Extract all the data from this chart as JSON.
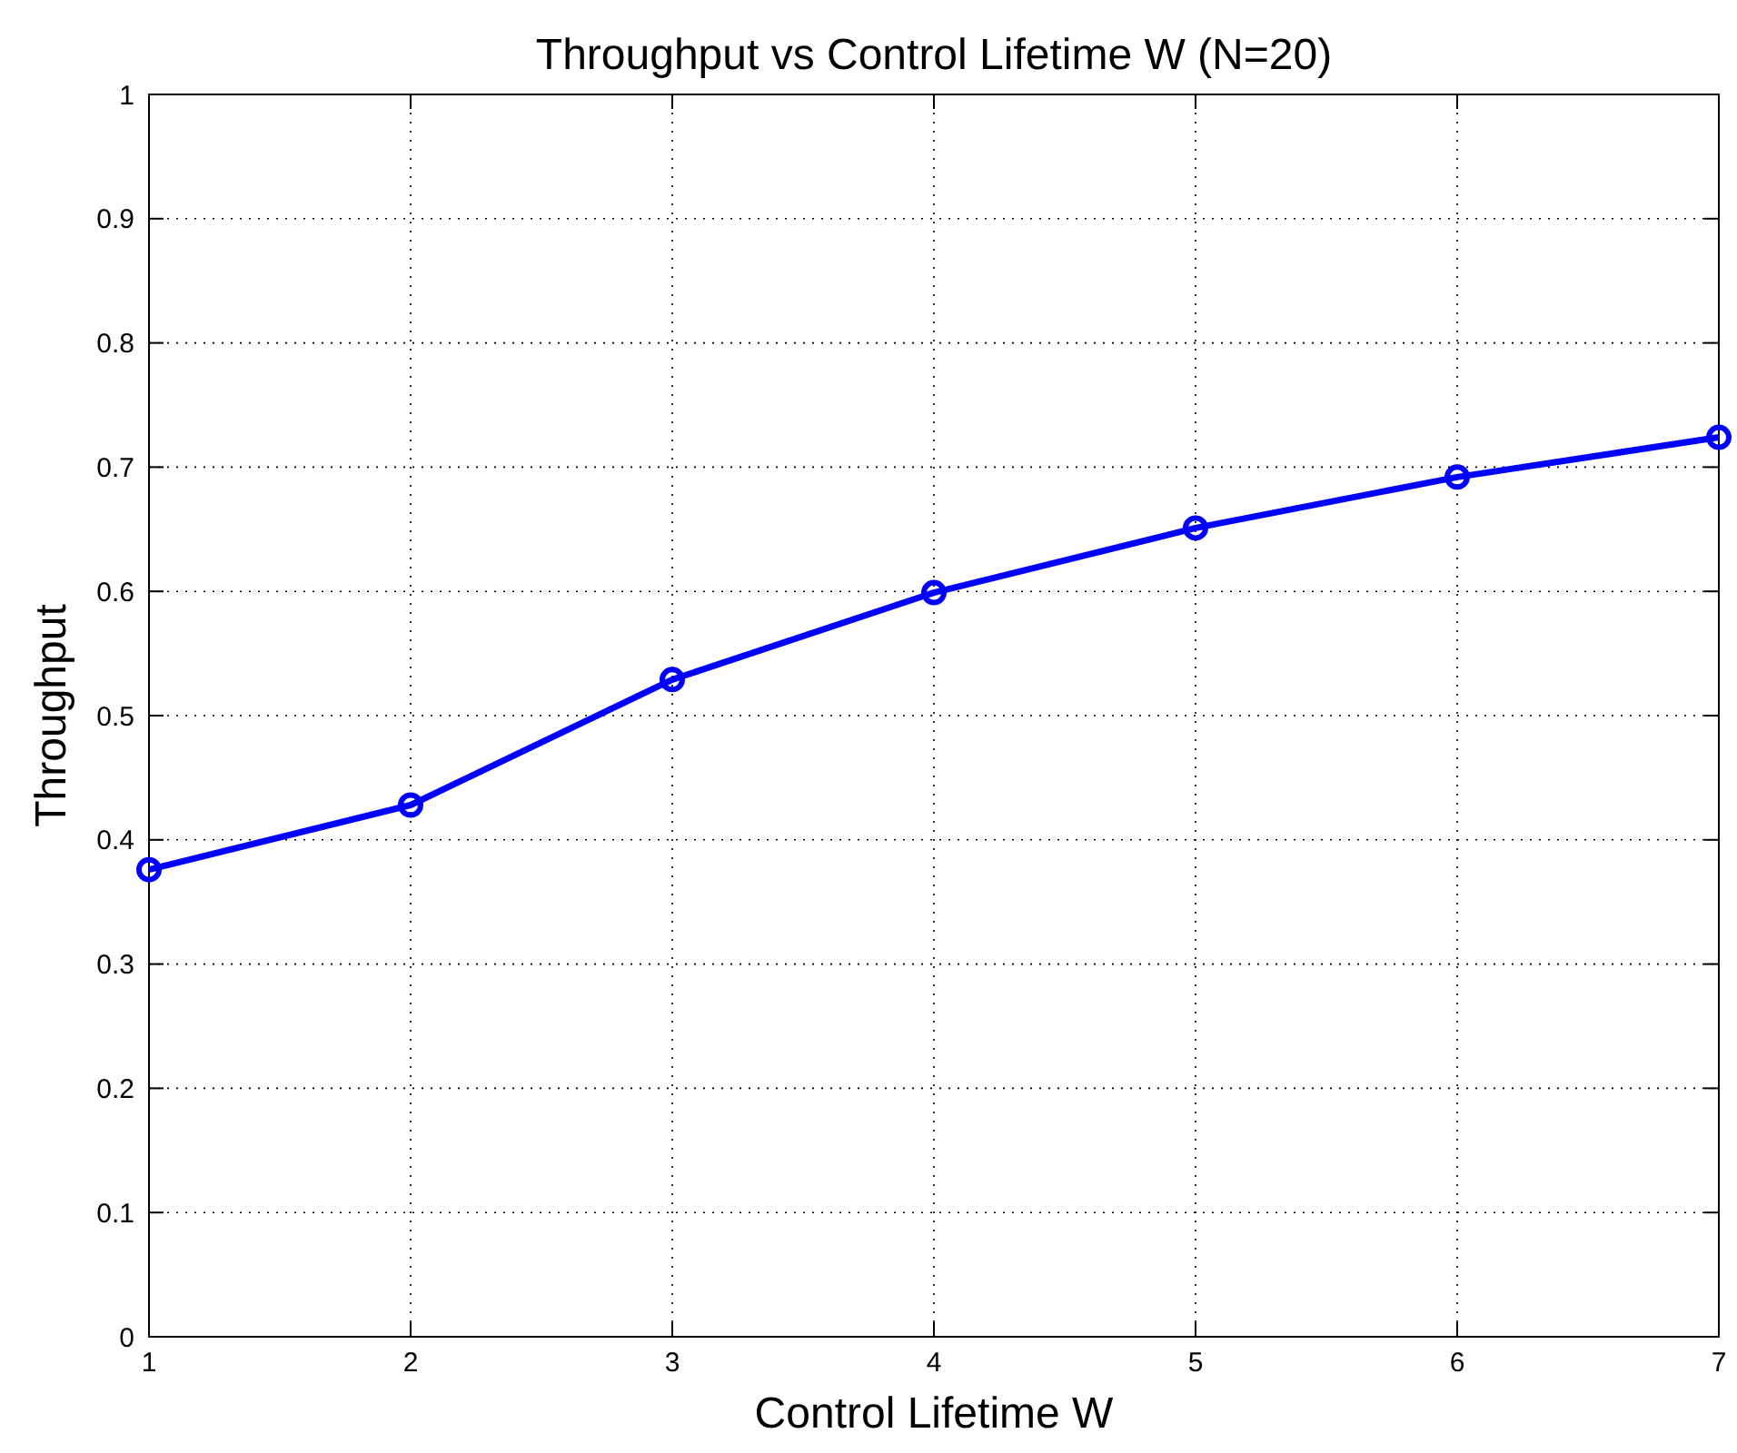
{
  "chart_data": {
    "type": "line",
    "title": "Throughput vs Control Lifetime W (N=20)",
    "xlabel": "Control Lifetime W",
    "ylabel": "Throughput",
    "x": [
      1,
      2,
      3,
      4,
      5,
      6,
      7
    ],
    "series": [
      {
        "color": "#0000ff",
        "values": [
          0.376,
          0.428,
          0.529,
          0.599,
          0.651,
          0.692,
          0.724
        ]
      }
    ],
    "xlim": [
      1,
      7
    ],
    "xticks": [
      1,
      2,
      3,
      4,
      5,
      6,
      7
    ],
    "ylim": [
      0,
      1
    ],
    "yticks": [
      0,
      0.1,
      0.2,
      0.3,
      0.4,
      0.5,
      0.6,
      0.7,
      0.8,
      0.9,
      1
    ],
    "grid": true,
    "marker": "circle",
    "line_style": "solid"
  }
}
